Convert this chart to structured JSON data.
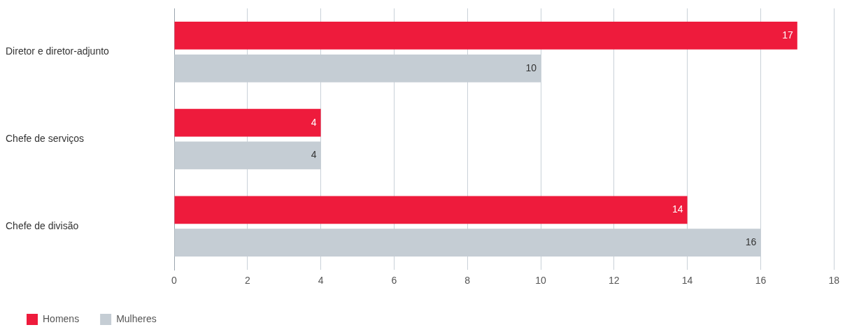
{
  "chart_data": {
    "type": "bar",
    "orientation": "horizontal",
    "categories": [
      "Diretor e diretor-adjunto",
      "Chefe de serviços",
      "Chefe de divisão"
    ],
    "series": [
      {
        "name": "Homens",
        "color": "#ee1b3c",
        "values": [
          17,
          4,
          14
        ]
      },
      {
        "name": "Mulheres",
        "color": "#c5cdd4",
        "values": [
          10,
          4,
          16
        ]
      }
    ],
    "xlim": [
      0,
      18
    ],
    "xticks": [
      0,
      2,
      4,
      6,
      8,
      10,
      12,
      14,
      16,
      18
    ],
    "grid": "x",
    "legend": "bottom left",
    "data_labels": true
  }
}
